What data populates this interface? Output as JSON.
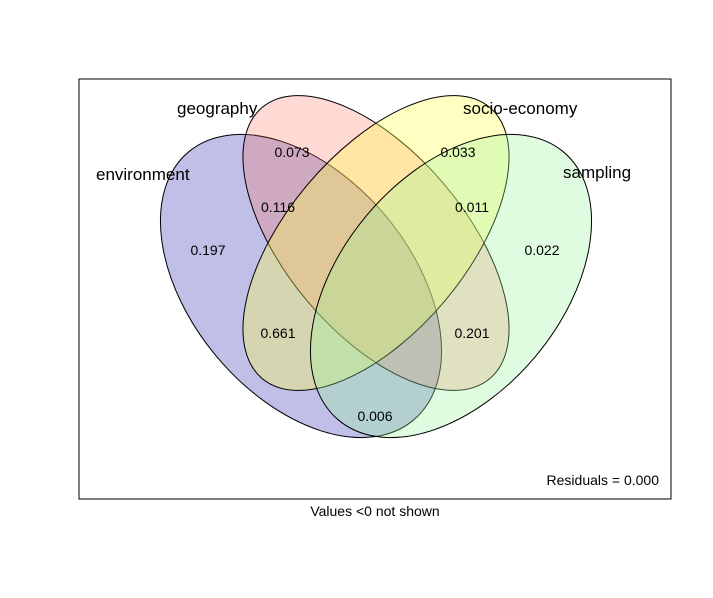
{
  "sets": [
    {
      "id": "environment",
      "label": "environment",
      "color": "#0000A0",
      "fill_opacity": 0.25
    },
    {
      "id": "geography",
      "label": "geography",
      "color": "#FF6650",
      "fill_opacity": 0.25
    },
    {
      "id": "socio-economy",
      "label": "socio-economy",
      "color": "#FFFF4D",
      "fill_opacity": 0.35
    },
    {
      "id": "sampling",
      "label": "sampling",
      "color": "#99F599",
      "fill_opacity": 0.3
    }
  ],
  "regions": {
    "environment_only": "0.197",
    "geography_only": "0.073",
    "socio_economy_only": "0.033",
    "sampling_only": "0.022",
    "environment_geography": "0.116",
    "socio_economy_sampling": "0.011",
    "environment_socio_economy": "0.661",
    "geography_sampling": "0.201",
    "environment_sampling": "0.006"
  },
  "footer": {
    "residuals": "Residuals = 0.000",
    "caption": "Values <0 not shown"
  }
}
